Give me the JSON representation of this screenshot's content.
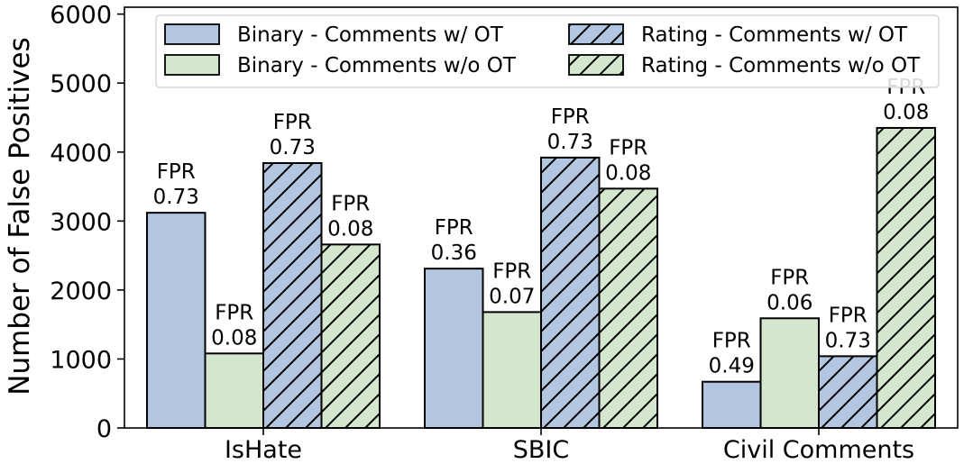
{
  "chart_data": {
    "type": "bar",
    "title": "",
    "xlabel": "",
    "ylabel": "Number of False Positives",
    "ylim": [
      0,
      6100
    ],
    "yticks": [
      0,
      1000,
      2000,
      3000,
      4000,
      5000,
      6000
    ],
    "categories": [
      "IsHate",
      "SBIC",
      "Civil Comments"
    ],
    "legend_position": "top",
    "series": [
      {
        "name": "Binary - Comments w/ OT",
        "color": "#b3c6e0",
        "hatched": false,
        "values": [
          3120,
          2310,
          670
        ],
        "labels": [
          "FPR\n0.73",
          "FPR\n0.36",
          "FPR\n0.49"
        ]
      },
      {
        "name": "Binary - Comments w/o OT",
        "color": "#d5e6cf",
        "hatched": false,
        "values": [
          1080,
          1680,
          1590
        ],
        "labels": [
          "FPR\n0.08",
          "FPR\n0.07",
          "FPR\n0.06"
        ]
      },
      {
        "name": "Rating - Comments w/ OT",
        "color": "#b3c6e0",
        "hatched": true,
        "values": [
          3840,
          3920,
          1040
        ],
        "labels": [
          "FPR\n0.73",
          "FPR\n0.73",
          "FPR\n0.73"
        ]
      },
      {
        "name": "Rating - Comments w/o OT",
        "color": "#d5e6cf",
        "hatched": true,
        "values": [
          2660,
          3470,
          4350
        ],
        "labels": [
          "FPR\n0.08",
          "FPR\n0.08",
          "FPR\n0.08"
        ]
      }
    ]
  }
}
